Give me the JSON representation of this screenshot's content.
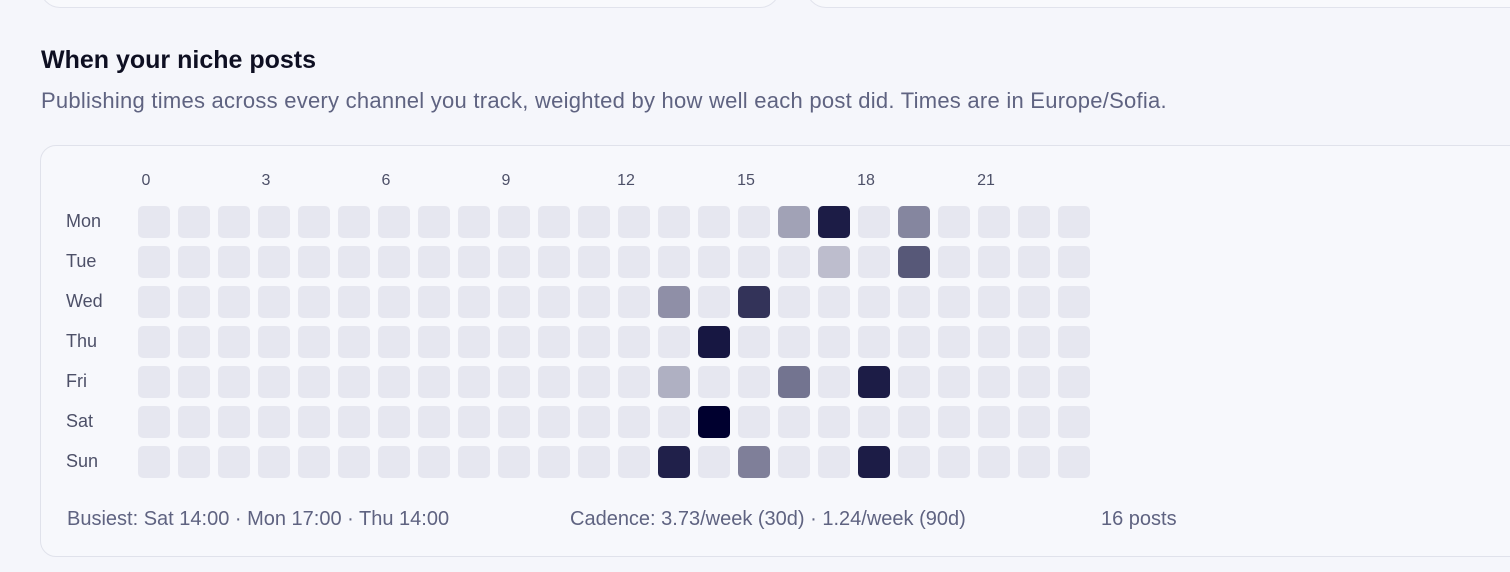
{
  "section": {
    "title": "When your niche posts",
    "subtitle": "Publishing times across every channel you track, weighted by how well each post did. Times are in Europe/Sofia."
  },
  "heatmap": {
    "hour_labels": [
      "0",
      "3",
      "6",
      "9",
      "12",
      "15",
      "18",
      "21"
    ],
    "hours_per_day": 24,
    "days": [
      "Mon",
      "Tue",
      "Wed",
      "Thu",
      "Fri",
      "Sat",
      "Sun"
    ],
    "colors": {
      "empty": "#e6e7f0",
      "intensity_dark": "#00002f"
    },
    "weighted_cells": [
      {
        "day": "Mon",
        "hour": 16,
        "level": 0.3
      },
      {
        "day": "Mon",
        "hour": 17,
        "level": 0.88
      },
      {
        "day": "Mon",
        "hour": 19,
        "level": 0.42
      },
      {
        "day": "Tue",
        "hour": 17,
        "level": 0.18
      },
      {
        "day": "Tue",
        "hour": 19,
        "level": 0.62
      },
      {
        "day": "Wed",
        "hour": 13,
        "level": 0.38
      },
      {
        "day": "Wed",
        "hour": 15,
        "level": 0.78
      },
      {
        "day": "Thu",
        "hour": 14,
        "level": 0.9
      },
      {
        "day": "Fri",
        "hour": 13,
        "level": 0.24
      },
      {
        "day": "Fri",
        "hour": 16,
        "level": 0.5
      },
      {
        "day": "Fri",
        "hour": 18,
        "level": 0.88
      },
      {
        "day": "Sat",
        "hour": 14,
        "level": 1.0
      },
      {
        "day": "Sun",
        "hour": 13,
        "level": 0.86
      },
      {
        "day": "Sun",
        "hour": 15,
        "level": 0.45
      },
      {
        "day": "Sun",
        "hour": 18,
        "level": 0.88
      }
    ]
  },
  "footer": {
    "busiest": "Busiest: Sat 14:00 · Mon 17:00 · Thu 14:00",
    "cadence": "Cadence: 3.73/week (30d) · 1.24/week (90d)",
    "posts": "16 posts"
  }
}
